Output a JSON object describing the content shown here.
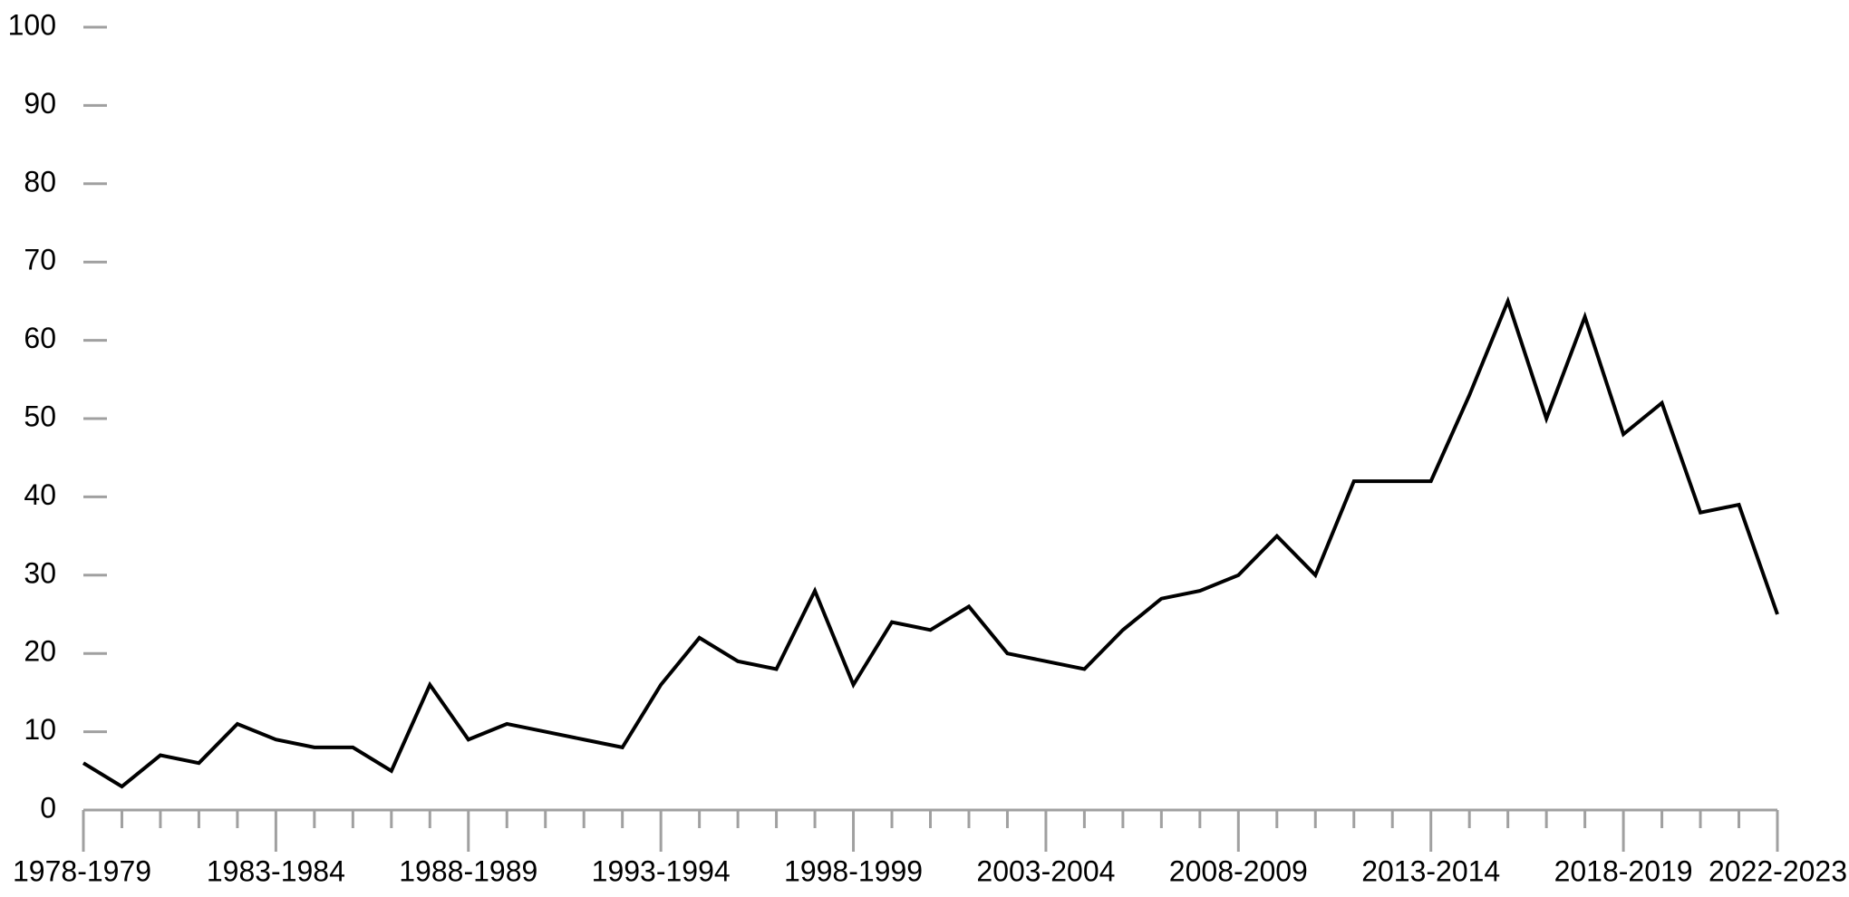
{
  "chart_data": {
    "type": "line",
    "categories": [
      "1978-1979",
      null,
      null,
      null,
      null,
      "1983-1984",
      null,
      null,
      null,
      null,
      "1988-1989",
      null,
      null,
      null,
      null,
      "1993-1994",
      null,
      null,
      null,
      null,
      "1998-1999",
      null,
      null,
      null,
      null,
      "2003-2004",
      null,
      null,
      null,
      null,
      "2008-2009",
      null,
      null,
      null,
      null,
      "2013-2014",
      null,
      null,
      null,
      null,
      "2018-2019",
      null,
      null,
      null,
      "2022-2023"
    ],
    "series": [
      {
        "color": "#000000",
        "values": [
          6,
          3,
          7,
          6,
          11,
          9,
          8,
          8,
          5,
          16,
          9,
          11,
          10,
          9,
          8,
          16,
          22,
          19,
          18,
          28,
          16,
          24,
          23,
          26,
          20,
          19,
          18,
          23,
          27,
          28,
          30,
          35,
          30,
          42,
          42,
          42,
          53,
          65,
          50,
          63,
          48,
          52,
          38,
          39,
          25
        ]
      }
    ],
    "ylim": [
      0,
      100
    ],
    "yticks": [
      0,
      10,
      20,
      30,
      40,
      50,
      60,
      70,
      80,
      90,
      100
    ],
    "grid": false
  }
}
